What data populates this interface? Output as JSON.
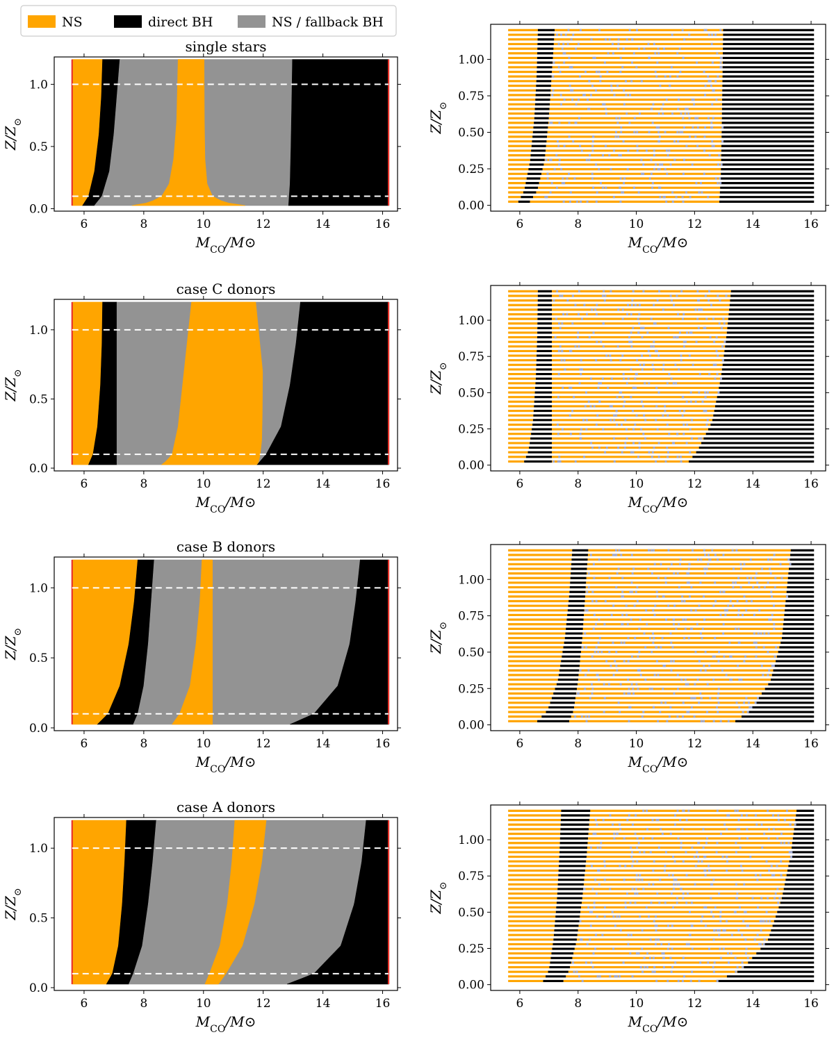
{
  "legend": {
    "items": [
      {
        "label": "NS",
        "color": "#ffa500"
      },
      {
        "label": "direct BH",
        "color": "#000000"
      },
      {
        "label": "NS / fallback BH",
        "color": "#939393"
      }
    ]
  },
  "labels": {
    "y_left": "Z/Z⊙",
    "x_left": "M_CO/M⊙",
    "y_right": "Z/Z⊙",
    "x_right": "M_CO/M⊙"
  },
  "colors": {
    "ns": "#ffa500",
    "bh": "#000000",
    "fallback": "#939393",
    "mass_limit_line": "#e8342a",
    "reference_line": "#ffffff",
    "scatter_speckle": "#9fa8d0"
  },
  "chart_data": [
    {
      "type": "area",
      "title": "single stars",
      "xlabel": "M_CO/M⊙",
      "ylabel": "Z/Z⊙",
      "xlim": [
        5.0,
        16.5
      ],
      "ylim": [
        -0.02,
        1.22
      ],
      "xticks": [
        "6",
        "8",
        "10",
        "12",
        "14",
        "16"
      ],
      "yticks": [
        "0.0",
        "0.5",
        "1.0"
      ],
      "mass_range": [
        5.6,
        16.2
      ],
      "z_range": [
        0.025,
        1.2
      ],
      "reference_lines_z": [
        0.1,
        1.0
      ],
      "boundaries": [
        {
          "points": [
            [
              5.95,
              0.025
            ],
            [
              6.15,
              0.1
            ],
            [
              6.35,
              0.3
            ],
            [
              6.5,
              0.6
            ],
            [
              6.58,
              0.9
            ],
            [
              6.62,
              1.2
            ]
          ]
        },
        {
          "points": [
            [
              6.35,
              0.025
            ],
            [
              6.6,
              0.1
            ],
            [
              6.85,
              0.3
            ],
            [
              7.0,
              0.6
            ],
            [
              7.1,
              0.9
            ],
            [
              7.2,
              1.2
            ]
          ]
        },
        {
          "points": [
            [
              11.4,
              0.025
            ],
            [
              10.7,
              0.05
            ],
            [
              10.3,
              0.1
            ],
            [
              10.12,
              0.2
            ],
            [
              10.05,
              0.4
            ],
            [
              10.03,
              0.7
            ],
            [
              10.02,
              1.2
            ]
          ],
          "left": [
            [
              7.6,
              0.025
            ],
            [
              8.2,
              0.05
            ],
            [
              8.6,
              0.1
            ],
            [
              8.85,
              0.2
            ],
            [
              9.0,
              0.4
            ],
            [
              9.1,
              0.7
            ],
            [
              9.15,
              1.2
            ]
          ]
        },
        {
          "points": [
            [
              12.85,
              0.025
            ],
            [
              12.9,
              0.2
            ],
            [
              12.93,
              0.5
            ],
            [
              12.96,
              0.9
            ],
            [
              12.98,
              1.2
            ]
          ]
        }
      ]
    },
    {
      "type": "area",
      "title": "case C donors",
      "xlabel": "M_CO/M⊙",
      "ylabel": "Z/Z⊙",
      "xlim": [
        5.0,
        16.5
      ],
      "ylim": [
        -0.02,
        1.22
      ],
      "xticks": [
        "6",
        "8",
        "10",
        "12",
        "14",
        "16"
      ],
      "yticks": [
        "0.0",
        "0.5",
        "1.0"
      ],
      "mass_range": [
        5.6,
        16.2
      ],
      "z_range": [
        0.025,
        1.2
      ],
      "reference_lines_z": [
        0.1,
        1.0
      ],
      "boundaries": [
        {
          "points": [
            [
              6.15,
              0.025
            ],
            [
              6.3,
              0.1
            ],
            [
              6.45,
              0.3
            ],
            [
              6.55,
              0.6
            ],
            [
              6.6,
              0.9
            ],
            [
              6.62,
              1.2
            ]
          ]
        },
        {
          "points": [
            [
              7.1,
              0.025
            ],
            [
              7.1,
              1.2
            ]
          ]
        },
        {
          "points": [
            [
              11.8,
              0.025
            ],
            [
              11.85,
              0.05
            ],
            [
              11.9,
              0.1
            ],
            [
              11.95,
              0.2
            ],
            [
              11.97,
              0.4
            ],
            [
              11.98,
              0.7
            ],
            [
              11.75,
              1.2
            ]
          ],
          "left": [
            [
              8.6,
              0.025
            ],
            [
              8.75,
              0.05
            ],
            [
              8.95,
              0.1
            ],
            [
              9.15,
              0.3
            ],
            [
              9.3,
              0.6
            ],
            [
              9.45,
              0.9
            ],
            [
              9.6,
              1.2
            ]
          ]
        },
        {
          "points": [
            [
              11.8,
              0.025
            ],
            [
              12.1,
              0.1
            ],
            [
              12.6,
              0.3
            ],
            [
              12.9,
              0.6
            ],
            [
              13.1,
              0.9
            ],
            [
              13.25,
              1.2
            ]
          ]
        }
      ]
    },
    {
      "type": "area",
      "title": "case B donors",
      "xlabel": "M_CO/M⊙",
      "ylabel": "Z/Z⊙",
      "xlim": [
        5.0,
        16.5
      ],
      "ylim": [
        -0.02,
        1.22
      ],
      "xticks": [
        "6",
        "8",
        "10",
        "12",
        "14",
        "16"
      ],
      "yticks": [
        "0.0",
        "0.5",
        "1.0"
      ],
      "mass_range": [
        5.6,
        16.2
      ],
      "z_range": [
        0.025,
        1.2
      ],
      "reference_lines_z": [
        0.1,
        1.0
      ],
      "boundaries": [
        {
          "points": [
            [
              6.45,
              0.025
            ],
            [
              6.8,
              0.1
            ],
            [
              7.2,
              0.3
            ],
            [
              7.5,
              0.6
            ],
            [
              7.68,
              0.9
            ],
            [
              7.8,
              1.2
            ]
          ]
        },
        {
          "points": [
            [
              7.65,
              0.025
            ],
            [
              7.8,
              0.1
            ],
            [
              8.0,
              0.3
            ],
            [
              8.15,
              0.6
            ],
            [
              8.25,
              0.9
            ],
            [
              8.35,
              1.2
            ]
          ]
        },
        {
          "points": [
            [
              10.3,
              0.025
            ],
            [
              10.3,
              1.2
            ]
          ],
          "left": [
            [
              8.95,
              0.025
            ],
            [
              9.2,
              0.1
            ],
            [
              9.55,
              0.3
            ],
            [
              9.75,
              0.6
            ],
            [
              9.88,
              0.9
            ],
            [
              9.95,
              1.2
            ]
          ]
        },
        {
          "points": [
            [
              12.9,
              0.025
            ],
            [
              13.7,
              0.1
            ],
            [
              14.5,
              0.3
            ],
            [
              14.9,
              0.6
            ],
            [
              15.1,
              0.9
            ],
            [
              15.25,
              1.2
            ]
          ]
        }
      ]
    },
    {
      "type": "area",
      "title": "case A donors",
      "xlabel": "M_CO/M⊙",
      "ylabel": "Z/Z⊙",
      "xlim": [
        5.0,
        16.5
      ],
      "ylim": [
        -0.02,
        1.22
      ],
      "xticks": [
        "6",
        "8",
        "10",
        "12",
        "14",
        "16"
      ],
      "yticks": [
        "0.0",
        "0.5",
        "1.0"
      ],
      "mass_range": [
        5.6,
        16.2
      ],
      "z_range": [
        0.025,
        1.2
      ],
      "reference_lines_z": [
        0.1,
        1.0
      ],
      "boundaries": [
        {
          "points": [
            [
              6.75,
              0.025
            ],
            [
              6.95,
              0.1
            ],
            [
              7.15,
              0.3
            ],
            [
              7.28,
              0.6
            ],
            [
              7.36,
              0.9
            ],
            [
              7.42,
              1.2
            ]
          ]
        },
        {
          "points": [
            [
              7.5,
              0.025
            ],
            [
              7.65,
              0.1
            ],
            [
              7.95,
              0.3
            ],
            [
              8.15,
              0.6
            ],
            [
              8.3,
              0.9
            ],
            [
              8.42,
              1.2
            ]
          ]
        },
        {
          "points": [
            [
              10.5,
              0.025
            ],
            [
              10.75,
              0.1
            ],
            [
              11.3,
              0.3
            ],
            [
              11.7,
              0.6
            ],
            [
              11.95,
              0.9
            ],
            [
              12.1,
              1.2
            ]
          ],
          "left": [
            [
              10.05,
              0.025
            ],
            [
              10.2,
              0.1
            ],
            [
              10.55,
              0.3
            ],
            [
              10.8,
              0.6
            ],
            [
              10.95,
              0.9
            ],
            [
              11.05,
              1.2
            ]
          ]
        },
        {
          "points": [
            [
              12.8,
              0.025
            ],
            [
              13.7,
              0.1
            ],
            [
              14.6,
              0.3
            ],
            [
              15.05,
              0.6
            ],
            [
              15.3,
              0.9
            ],
            [
              15.45,
              1.2
            ]
          ]
        }
      ]
    },
    {
      "type": "scatter",
      "title": "",
      "xlabel": "M_CO/M⊙",
      "ylabel": "Z/Z⊙",
      "xlim": [
        5.0,
        16.5
      ],
      "ylim": [
        -0.04,
        1.24
      ],
      "xticks": [
        "6",
        "8",
        "10",
        "12",
        "14",
        "16"
      ],
      "yticks": [
        "0.00",
        "0.25",
        "0.50",
        "0.75",
        "1.00"
      ],
      "x_range": [
        5.6,
        16.1
      ],
      "z_range": [
        0.025,
        1.2
      ],
      "rows": 38,
      "ns_end": [
        [
          0.025,
          5.95
        ],
        [
          0.1,
          6.15
        ],
        [
          0.3,
          6.35
        ],
        [
          0.6,
          6.5
        ],
        [
          0.9,
          6.58
        ],
        [
          1.2,
          6.62
        ]
      ],
      "bh_end": [
        [
          0.025,
          6.35
        ],
        [
          0.1,
          6.6
        ],
        [
          0.3,
          6.85
        ],
        [
          0.6,
          7.0
        ],
        [
          0.9,
          7.1
        ],
        [
          1.2,
          7.2
        ]
      ],
      "final_bh_start": [
        [
          0.025,
          12.85
        ],
        [
          0.2,
          12.9
        ],
        [
          0.5,
          12.93
        ],
        [
          0.9,
          12.96
        ],
        [
          1.2,
          12.98
        ]
      ]
    },
    {
      "type": "scatter",
      "title": "",
      "xlabel": "M_CO/M⊙",
      "ylabel": "Z/Z⊙",
      "xlim": [
        5.0,
        16.5
      ],
      "ylim": [
        -0.04,
        1.24
      ],
      "xticks": [
        "6",
        "8",
        "10",
        "12",
        "14",
        "16"
      ],
      "yticks": [
        "0.00",
        "0.25",
        "0.50",
        "0.75",
        "1.00"
      ],
      "x_range": [
        5.6,
        16.1
      ],
      "z_range": [
        0.025,
        1.2
      ],
      "rows": 38,
      "ns_end": [
        [
          0.025,
          6.15
        ],
        [
          0.1,
          6.3
        ],
        [
          0.3,
          6.45
        ],
        [
          0.6,
          6.55
        ],
        [
          0.9,
          6.6
        ],
        [
          1.2,
          6.62
        ]
      ],
      "bh_end": [
        [
          0.025,
          7.1
        ],
        [
          1.2,
          7.1
        ]
      ],
      "final_bh_start": [
        [
          0.025,
          11.8
        ],
        [
          0.1,
          12.1
        ],
        [
          0.3,
          12.6
        ],
        [
          0.6,
          12.9
        ],
        [
          0.9,
          13.1
        ],
        [
          1.2,
          13.25
        ]
      ]
    },
    {
      "type": "scatter",
      "title": "",
      "xlabel": "M_CO/M⊙",
      "ylabel": "Z/Z⊙",
      "xlim": [
        5.0,
        16.5
      ],
      "ylim": [
        -0.04,
        1.24
      ],
      "xticks": [
        "6",
        "8",
        "10",
        "12",
        "14",
        "16"
      ],
      "yticks": [
        "0.00",
        "0.25",
        "0.50",
        "0.75",
        "1.00"
      ],
      "x_range": [
        5.6,
        16.1
      ],
      "z_range": [
        0.025,
        1.2
      ],
      "rows": 38,
      "ns_end": [
        [
          0.025,
          6.6
        ],
        [
          0.1,
          6.95
        ],
        [
          0.3,
          7.3
        ],
        [
          0.6,
          7.55
        ],
        [
          0.9,
          7.7
        ],
        [
          1.2,
          7.8
        ]
      ],
      "bh_end": [
        [
          0.025,
          7.7
        ],
        [
          0.1,
          7.85
        ],
        [
          0.3,
          8.0
        ],
        [
          0.6,
          8.15
        ],
        [
          0.9,
          8.25
        ],
        [
          1.2,
          8.35
        ]
      ],
      "final_bh_start": [
        [
          0.025,
          13.4
        ],
        [
          0.1,
          13.9
        ],
        [
          0.3,
          14.6
        ],
        [
          0.6,
          15.0
        ],
        [
          0.9,
          15.15
        ],
        [
          1.2,
          15.3
        ]
      ]
    },
    {
      "type": "scatter",
      "title": "",
      "xlabel": "M_CO/M⊙",
      "ylabel": "Z/Z⊙",
      "xlim": [
        5.0,
        16.5
      ],
      "ylim": [
        -0.04,
        1.24
      ],
      "xticks": [
        "6",
        "8",
        "10",
        "12",
        "14",
        "16"
      ],
      "yticks": [
        "0.00",
        "0.25",
        "0.50",
        "0.75",
        "1.00"
      ],
      "x_range": [
        5.6,
        16.1
      ],
      "z_range": [
        0.025,
        1.2
      ],
      "rows": 38,
      "ns_end": [
        [
          0.025,
          6.8
        ],
        [
          0.1,
          7.0
        ],
        [
          0.3,
          7.15
        ],
        [
          0.6,
          7.28
        ],
        [
          0.9,
          7.36
        ],
        [
          1.2,
          7.42
        ]
      ],
      "bh_end": [
        [
          0.025,
          7.5
        ],
        [
          0.1,
          7.7
        ],
        [
          0.3,
          7.95
        ],
        [
          0.6,
          8.15
        ],
        [
          0.9,
          8.3
        ],
        [
          1.2,
          8.42
        ]
      ],
      "final_bh_start": [
        [
          0.025,
          12.75
        ],
        [
          0.1,
          13.6
        ],
        [
          0.3,
          14.5
        ],
        [
          0.6,
          15.0
        ],
        [
          0.9,
          15.3
        ],
        [
          1.2,
          15.5
        ]
      ]
    }
  ]
}
